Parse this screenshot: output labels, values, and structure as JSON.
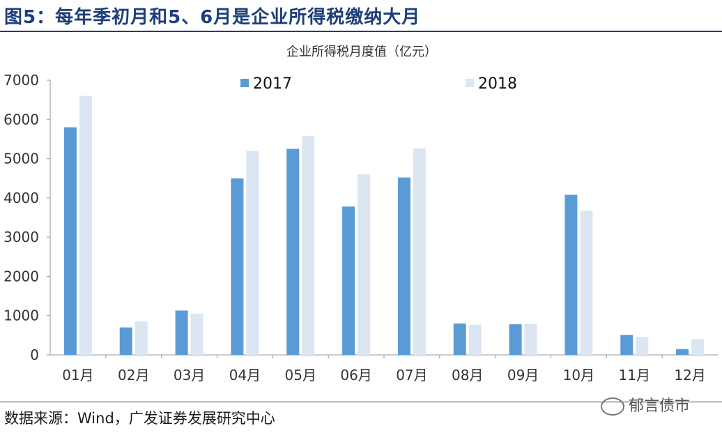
{
  "header": {
    "title": "图5：每年季初月和5、6月是企业所得税缴纳大月"
  },
  "footer": {
    "source": "数据来源：Wind，广发证券发展研究中心",
    "watermark": "郁言债市"
  },
  "colors": {
    "series_2017": "#5b9bd5",
    "series_2018": "#dce6f2",
    "title": "#1c3f7a"
  },
  "chart_data": {
    "type": "bar",
    "title": "企业所得税月度值（亿元）",
    "categories": [
      "01月",
      "02月",
      "03月",
      "04月",
      "05月",
      "06月",
      "07月",
      "08月",
      "09月",
      "10月",
      "11月",
      "12月"
    ],
    "series": [
      {
        "name": "2017",
        "values": [
          5800,
          700,
          1130,
          4500,
          5250,
          3780,
          4520,
          800,
          780,
          4080,
          510,
          150
        ]
      },
      {
        "name": "2018",
        "values": [
          6600,
          860,
          1050,
          5200,
          5580,
          4600,
          5260,
          770,
          790,
          3680,
          460,
          400
        ]
      }
    ],
    "ylim": [
      0,
      7000
    ],
    "yticks": [
      0,
      1000,
      2000,
      3000,
      4000,
      5000,
      6000,
      7000
    ],
    "legend_position": "top",
    "grid": false
  }
}
